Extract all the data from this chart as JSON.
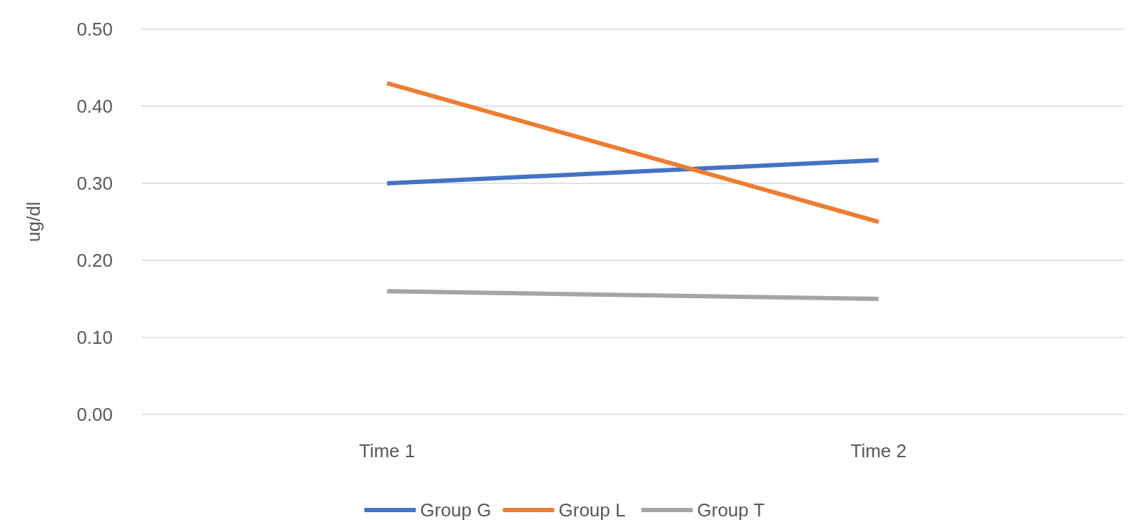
{
  "chart_data": {
    "type": "line",
    "ylabel": "ug/dl",
    "categories": [
      "Time 1",
      "Time 2"
    ],
    "series": [
      {
        "name": "Group G",
        "color": "#4472c4",
        "values": [
          0.3,
          0.33
        ]
      },
      {
        "name": "Group L",
        "color": "#ed7d31",
        "values": [
          0.43,
          0.25
        ]
      },
      {
        "name": "Group T",
        "color": "#a5a5a5",
        "values": [
          0.16,
          0.15
        ]
      }
    ],
    "ylim": [
      0,
      0.5
    ],
    "yticks": [
      {
        "value": 0,
        "label": "0.00"
      },
      {
        "value": 0.1,
        "label": "0.10"
      },
      {
        "value": 0.2,
        "label": "0.20"
      },
      {
        "value": 0.3,
        "label": "0.30"
      },
      {
        "value": 0.4,
        "label": "0.40"
      },
      {
        "value": 0.5,
        "label": "0.50"
      }
    ],
    "grid": "y",
    "legend": "bottom",
    "marker": "none",
    "line_style": "solid"
  }
}
